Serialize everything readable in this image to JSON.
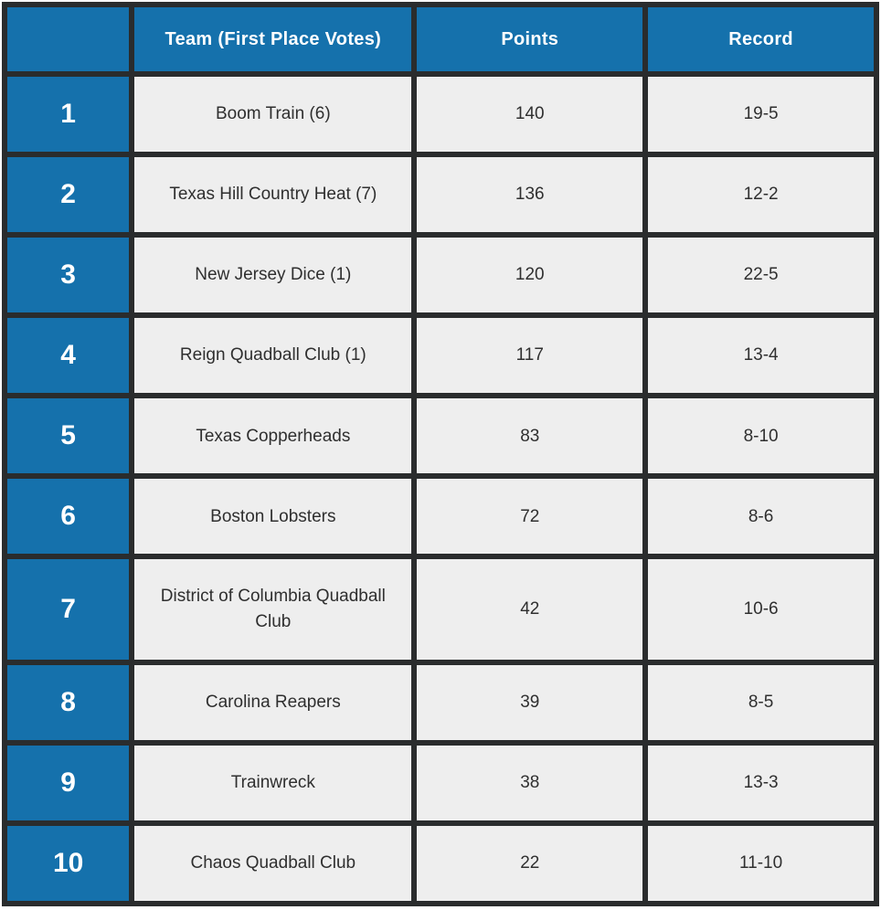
{
  "chart_data": {
    "type": "table",
    "title": "",
    "columns": [
      "",
      "Team (First Place Votes)",
      "Points",
      "Record"
    ],
    "rows": [
      [
        "1",
        "Boom Train (6)",
        "140",
        "19-5"
      ],
      [
        "2",
        "Texas Hill Country Heat (7)",
        "136",
        "12-2"
      ],
      [
        "3",
        "New Jersey Dice (1)",
        "120",
        "22-5"
      ],
      [
        "4",
        "Reign Quadball Club (1)",
        "117",
        "13-4"
      ],
      [
        "5",
        "Texas Copperheads",
        "83",
        "8-10"
      ],
      [
        "6",
        "Boston Lobsters",
        "72",
        "8-6"
      ],
      [
        "7",
        "District of Columbia Quadball Club",
        "42",
        "10-6"
      ],
      [
        "8",
        "Carolina Reapers",
        "39",
        "8-5"
      ],
      [
        "9",
        "Trainwreck",
        "38",
        "13-3"
      ],
      [
        "10",
        "Chaos Quadball Club",
        "22",
        "11-10"
      ]
    ],
    "layout": {
      "grid": true,
      "header_style": "blue banner, bold white text",
      "rank_column_style": "blue, bold white numerals"
    }
  },
  "colors": {
    "header_blue": "#1571ac",
    "border_dark": "#2a2c2d",
    "cell_gray": "#eeeeee",
    "text_dark": "#2f2f2f",
    "text_white": "#ffffff"
  }
}
